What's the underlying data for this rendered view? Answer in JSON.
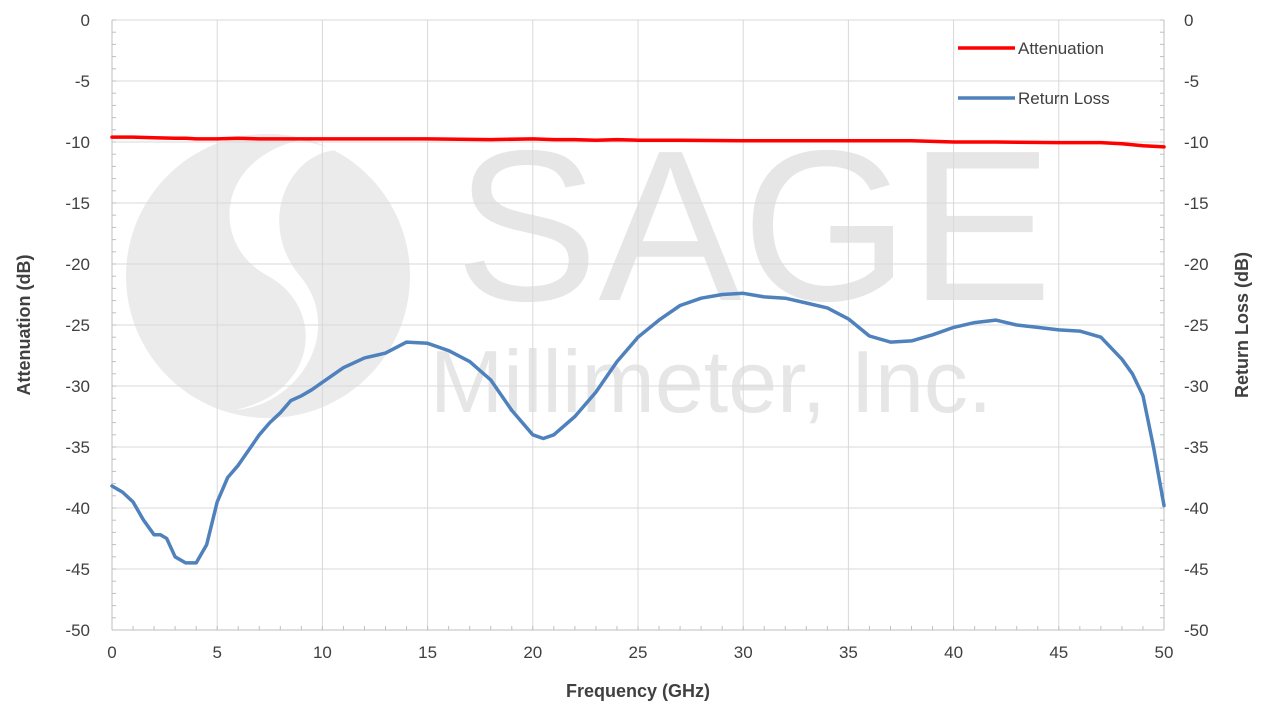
{
  "chart_data": {
    "type": "line",
    "xlabel": "Frequency (GHz)",
    "ylabel_left": "Attenuation (dB)",
    "ylabel_right": "Return Loss (dB)",
    "xlim": [
      0,
      50
    ],
    "ylim": [
      -50,
      0
    ],
    "x_ticks": [
      0,
      5,
      10,
      15,
      20,
      25,
      30,
      35,
      40,
      45,
      50
    ],
    "y_ticks": [
      0,
      -5,
      -10,
      -15,
      -20,
      -25,
      -30,
      -35,
      -40,
      -45,
      -50
    ],
    "grid": true,
    "legend_position": "top-right",
    "series": [
      {
        "name": "Attenuation",
        "color": "#ff0000",
        "x": [
          0,
          1,
          2,
          3,
          3.5,
          4,
          5,
          6,
          7,
          8,
          10,
          12,
          15,
          18,
          20,
          21,
          22,
          23,
          24,
          25,
          27,
          30,
          33,
          35,
          37,
          38,
          39,
          40,
          42,
          45,
          47,
          48,
          49,
          50
        ],
        "y": [
          -9.6,
          -9.6,
          -9.65,
          -9.7,
          -9.7,
          -9.75,
          -9.75,
          -9.7,
          -9.75,
          -9.75,
          -9.75,
          -9.75,
          -9.75,
          -9.8,
          -9.75,
          -9.8,
          -9.8,
          -9.85,
          -9.8,
          -9.85,
          -9.85,
          -9.9,
          -9.9,
          -9.9,
          -9.9,
          -9.9,
          -9.95,
          -10.0,
          -10.0,
          -10.05,
          -10.05,
          -10.15,
          -10.3,
          -10.4
        ]
      },
      {
        "name": "Return Loss",
        "color": "#4f81bd",
        "x": [
          0,
          0.5,
          1,
          1.5,
          2,
          2.3,
          2.6,
          3,
          3.5,
          4,
          4.5,
          5,
          5.5,
          6,
          7,
          7.5,
          8,
          8.5,
          9,
          9.5,
          10,
          11,
          12,
          13,
          14,
          15,
          16,
          17,
          18,
          19,
          20,
          20.5,
          21,
          22,
          23,
          24,
          25,
          26,
          27,
          28,
          29,
          30,
          31,
          32,
          33,
          34,
          35,
          36,
          37,
          38,
          39,
          40,
          41,
          42,
          43,
          44,
          45,
          46,
          47,
          48,
          48.5,
          49,
          49.5,
          50
        ],
        "y": [
          -38.2,
          -38.7,
          -39.5,
          -41,
          -42.2,
          -42.2,
          -42.5,
          -44,
          -44.5,
          -44.5,
          -43,
          -39.5,
          -37.5,
          -36.5,
          -34,
          -33,
          -32.2,
          -31.2,
          -30.8,
          -30.3,
          -29.7,
          -28.5,
          -27.7,
          -27.3,
          -26.4,
          -26.5,
          -27.1,
          -28,
          -29.5,
          -32,
          -34,
          -34.3,
          -34,
          -32.5,
          -30.5,
          -28,
          -26,
          -24.6,
          -23.4,
          -22.8,
          -22.5,
          -22.4,
          -22.7,
          -22.8,
          -23.2,
          -23.6,
          -24.5,
          -25.9,
          -26.4,
          -26.3,
          -25.8,
          -25.2,
          -24.8,
          -24.6,
          -25,
          -25.2,
          -25.4,
          -25.5,
          -26,
          -27.8,
          -29,
          -30.8,
          -35,
          -39.8
        ]
      }
    ]
  },
  "watermark": {
    "line1": "SAGE",
    "line2": "Millimeter, Inc."
  }
}
